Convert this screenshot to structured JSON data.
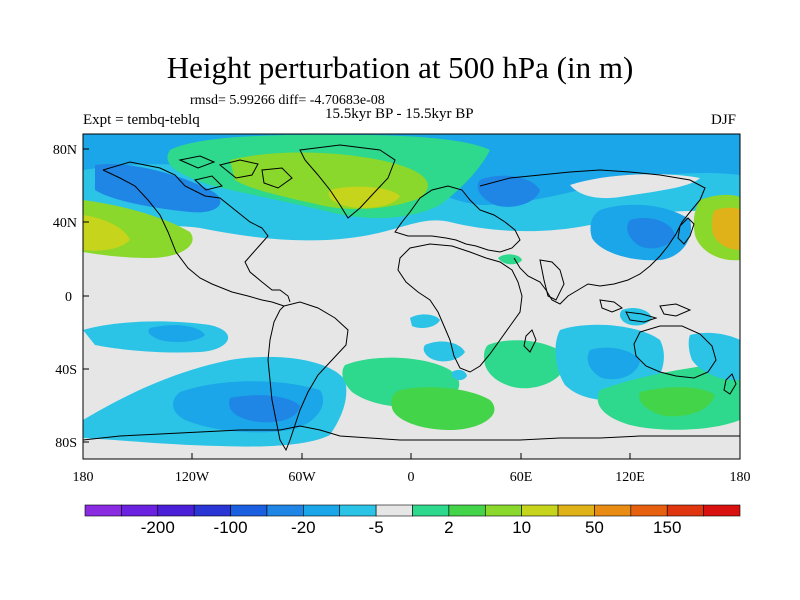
{
  "title": "Height perturbation at 500 hPa (in m)",
  "rmsd_line": "rmsd= 5.99266 diff= -4.70683e-08",
  "subtitle": "15.5kyr BP - 15.5kyr BP",
  "experiment": "Expt = tembq-teblq",
  "season": "DJF",
  "lat_ticks": [
    "80N",
    "40N",
    "0",
    "40S",
    "80S"
  ],
  "lon_ticks": [
    "180",
    "120W",
    "60W",
    "0",
    "60E",
    "120E",
    "180"
  ],
  "colorbar": {
    "colors": [
      "#8a2be2",
      "#6a22e0",
      "#4b1fd8",
      "#2a35d6",
      "#1a5fe0",
      "#1f86e6",
      "#1aa6e8",
      "#2cc4e6",
      "#e6e6e6",
      "#2ed88c",
      "#44d44a",
      "#8ad82c",
      "#c6d41c",
      "#e0b21a",
      "#e88c14",
      "#e6600f",
      "#e0360f",
      "#d81010"
    ],
    "labels": [
      "-200",
      "-100",
      "-20",
      "-5",
      "2",
      "10",
      "50",
      "150"
    ]
  },
  "field_colors": {
    "neutral": "#e6e6e6",
    "light_blue": "#2cc4e6",
    "mid_blue": "#1aa6e8",
    "blue": "#1f86e6",
    "dark_blue": "#1a5fe0",
    "aqua_green": "#2ed88c",
    "green": "#44d44a",
    "yellow_green": "#8ad82c",
    "yellow": "#c6d41c",
    "orange": "#e0b21a"
  }
}
